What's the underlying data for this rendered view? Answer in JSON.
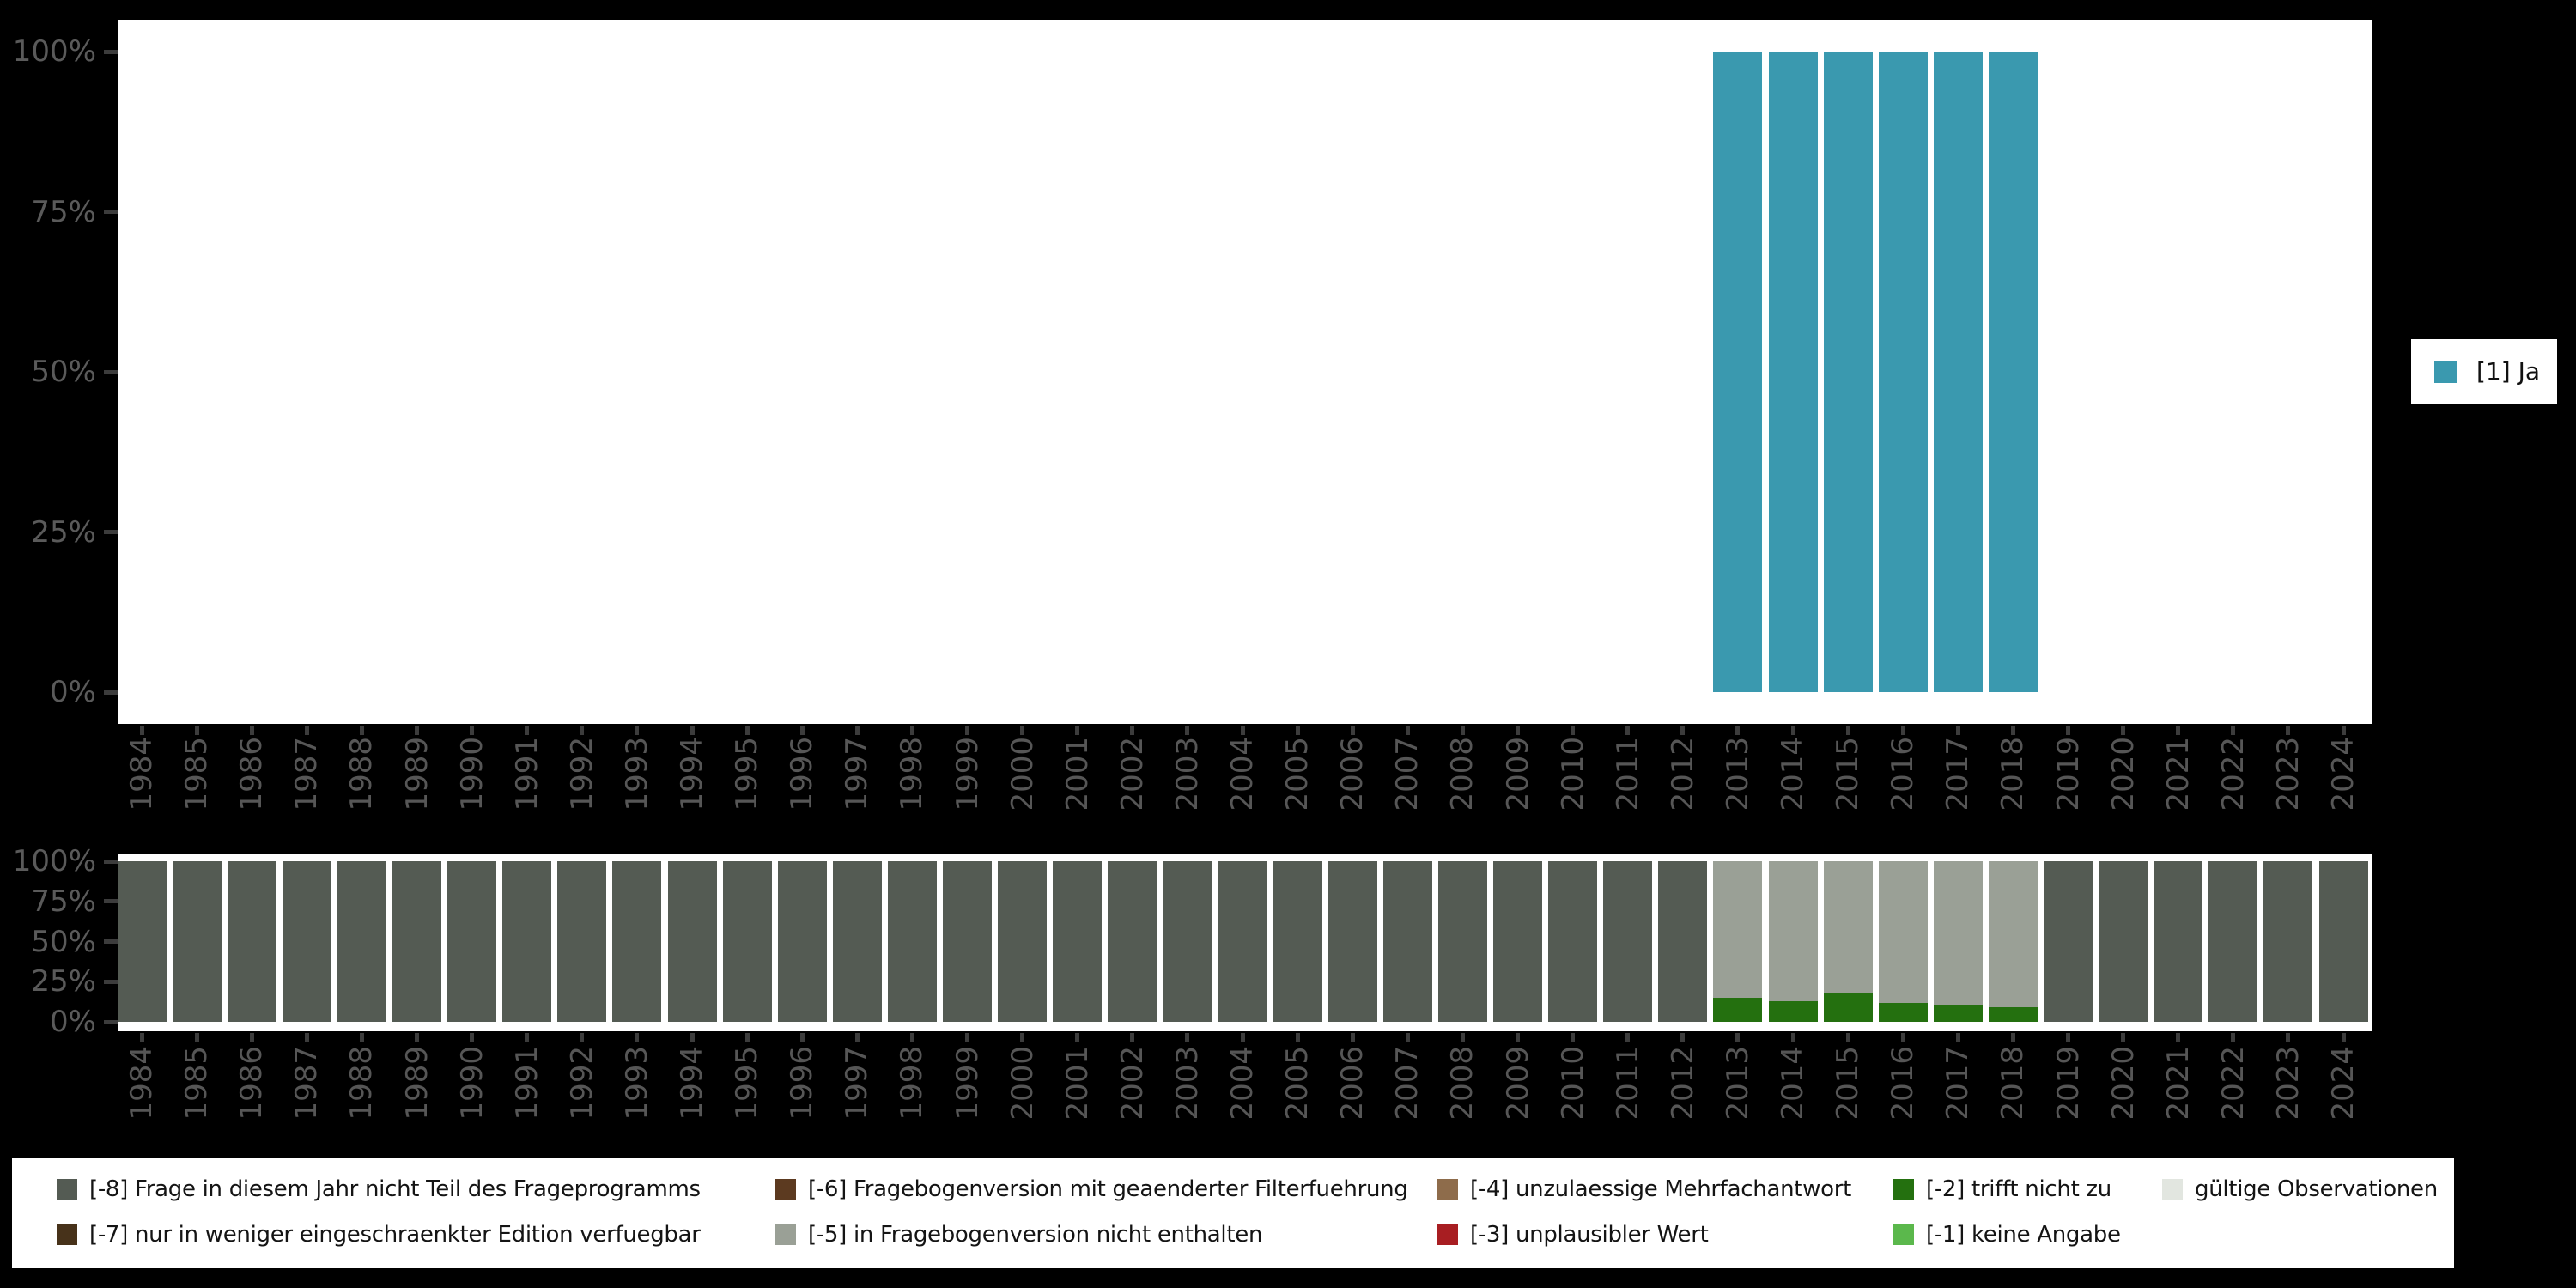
{
  "figure": {
    "background": "#000000",
    "panel_background": "#ffffff"
  },
  "palette": {
    "ja": "#3A99AF",
    "m8": "#545B53",
    "m7": "#47321A",
    "m6": "#5C3A20",
    "m5": "#9AA096",
    "m4": "#8E6C4B",
    "m3": "#A81E22",
    "m2": "#24700F",
    "m1": "#5BB84C",
    "valid": "#E2E6E0"
  },
  "top_legend": {
    "label": "[1] Ja",
    "color_key": "ja"
  },
  "axis": {
    "y_tick_labels": [
      "100%",
      "75%",
      "50%",
      "25%",
      "0%"
    ],
    "years": [
      "1984",
      "1985",
      "1986",
      "1987",
      "1988",
      "1989",
      "1990",
      "1991",
      "1992",
      "1993",
      "1994",
      "1995",
      "1996",
      "1997",
      "1998",
      "1999",
      "2000",
      "2001",
      "2002",
      "2003",
      "2004",
      "2005",
      "2006",
      "2007",
      "2008",
      "2009",
      "2010",
      "2011",
      "2012",
      "2013",
      "2014",
      "2015",
      "2016",
      "2017",
      "2018",
      "2019",
      "2020",
      "2021",
      "2022",
      "2023",
      "2024"
    ]
  },
  "chart_data": [
    {
      "id": "answer-distribution",
      "type": "bar",
      "stacked": false,
      "title": "",
      "xlabel": "",
      "ylabel": "",
      "ylim": [
        0,
        100
      ],
      "y_ticks_percent": [
        100,
        75,
        50,
        25,
        0
      ],
      "legend_position": "right",
      "grid": false,
      "categories": [
        1984,
        1985,
        1986,
        1987,
        1988,
        1989,
        1990,
        1991,
        1992,
        1993,
        1994,
        1995,
        1996,
        1997,
        1998,
        1999,
        2000,
        2001,
        2002,
        2003,
        2004,
        2005,
        2006,
        2007,
        2008,
        2009,
        2010,
        2011,
        2012,
        2013,
        2014,
        2015,
        2016,
        2017,
        2018,
        2019,
        2020,
        2021,
        2022,
        2023,
        2024
      ],
      "series": [
        {
          "name": "[1] Ja",
          "color_key": "ja",
          "values": [
            0,
            0,
            0,
            0,
            0,
            0,
            0,
            0,
            0,
            0,
            0,
            0,
            0,
            0,
            0,
            0,
            0,
            0,
            0,
            0,
            0,
            0,
            0,
            0,
            0,
            0,
            0,
            0,
            0,
            100,
            100,
            100,
            100,
            100,
            100,
            0,
            0,
            0,
            0,
            0,
            0
          ]
        }
      ]
    },
    {
      "id": "missing-codes-distribution",
      "type": "bar",
      "stacked": true,
      "title": "",
      "xlabel": "",
      "ylabel": "",
      "ylim": [
        0,
        100
      ],
      "y_ticks_percent": [
        100,
        75,
        50,
        25,
        0
      ],
      "grid": false,
      "categories": [
        1984,
        1985,
        1986,
        1987,
        1988,
        1989,
        1990,
        1991,
        1992,
        1993,
        1994,
        1995,
        1996,
        1997,
        1998,
        1999,
        2000,
        2001,
        2002,
        2003,
        2004,
        2005,
        2006,
        2007,
        2008,
        2009,
        2010,
        2011,
        2012,
        2013,
        2014,
        2015,
        2016,
        2017,
        2018,
        2019,
        2020,
        2021,
        2022,
        2023,
        2024
      ],
      "series": [
        {
          "name": "[-2] trifft nicht zu",
          "color_key": "m2",
          "values": [
            0,
            0,
            0,
            0,
            0,
            0,
            0,
            0,
            0,
            0,
            0,
            0,
            0,
            0,
            0,
            0,
            0,
            0,
            0,
            0,
            0,
            0,
            0,
            0,
            0,
            0,
            0,
            0,
            0,
            15,
            13,
            18,
            12,
            10,
            9,
            0,
            0,
            0,
            0,
            0,
            0
          ]
        },
        {
          "name": "[-5] in Fragebogenversion nicht enthalten",
          "color_key": "m5",
          "values": [
            0,
            0,
            0,
            0,
            0,
            0,
            0,
            0,
            0,
            0,
            0,
            0,
            0,
            0,
            0,
            0,
            0,
            0,
            0,
            0,
            0,
            0,
            0,
            0,
            0,
            0,
            0,
            0,
            0,
            85,
            87,
            82,
            88,
            90,
            91,
            0,
            0,
            0,
            0,
            0,
            0
          ]
        },
        {
          "name": "[-8] Frage in diesem Jahr nicht Teil des Frageprogramms",
          "color_key": "m8",
          "values": [
            100,
            100,
            100,
            100,
            100,
            100,
            100,
            100,
            100,
            100,
            100,
            100,
            100,
            100,
            100,
            100,
            100,
            100,
            100,
            100,
            100,
            100,
            100,
            100,
            100,
            100,
            100,
            100,
            100,
            0,
            0,
            0,
            0,
            0,
            0,
            100,
            100,
            100,
            100,
            100,
            100
          ]
        }
      ]
    }
  ],
  "bottom_legend": {
    "columns": [
      {
        "items": [
          {
            "key": "m8",
            "label": "[-8] Frage in diesem Jahr nicht Teil des Frageprogramms"
          },
          {
            "key": "m7",
            "label": "[-7] nur in weniger eingeschraenkter Edition verfuegbar"
          }
        ]
      },
      {
        "items": [
          {
            "key": "m6",
            "label": "[-6] Fragebogenversion mit geaenderter Filterfuehrung"
          },
          {
            "key": "m5",
            "label": "[-5] in Fragebogenversion nicht enthalten"
          }
        ]
      },
      {
        "items": [
          {
            "key": "m4",
            "label": "[-4] unzulaessige Mehrfachantwort"
          },
          {
            "key": "m3",
            "label": "[-3] unplausibler Wert"
          }
        ]
      },
      {
        "items": [
          {
            "key": "m2",
            "label": "[-2] trifft nicht zu"
          },
          {
            "key": "m1",
            "label": "[-1] keine Angabe"
          }
        ]
      },
      {
        "items": [
          {
            "key": "valid",
            "label": "gültige Observationen"
          }
        ]
      }
    ]
  }
}
